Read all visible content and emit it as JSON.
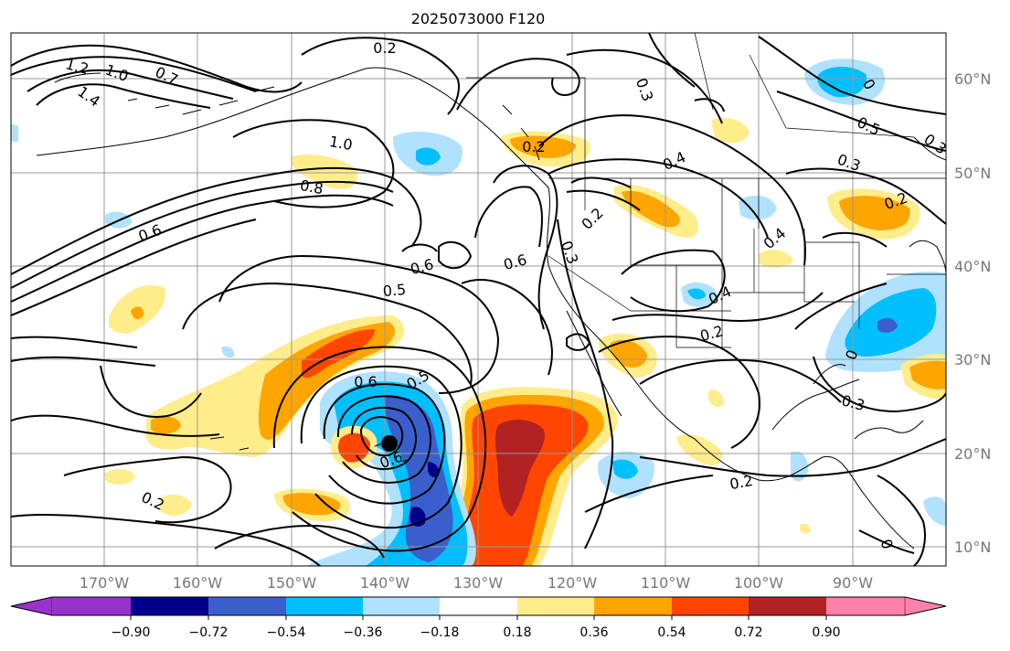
{
  "title": "2025073000 F120",
  "map": {
    "projection": "PlateCarree",
    "lon_range": [
      -180,
      -80
    ],
    "lat_range": [
      8,
      66
    ],
    "gridlines": true,
    "lon_labels": [
      "170°W",
      "160°W",
      "150°W",
      "140°W",
      "130°W",
      "120°W",
      "110°W",
      "100°W",
      "90°W"
    ],
    "lat_labels": [
      "60°N",
      "50°N",
      "40°N",
      "30°N",
      "20°N",
      "10°N"
    ],
    "contour_labels": [
      {
        "text": "0.2",
        "id": "c02a"
      },
      {
        "text": "1.2",
        "id": "c12"
      },
      {
        "text": "1.0",
        "id": "c10a"
      },
      {
        "text": "1.4",
        "id": "c14"
      },
      {
        "text": "0.7",
        "id": "c07"
      },
      {
        "text": "1.0",
        "id": "c10b"
      },
      {
        "text": "0.8",
        "id": "c08"
      },
      {
        "text": "0.6",
        "id": "c06a"
      },
      {
        "text": "0.6",
        "id": "c06b"
      },
      {
        "text": "0.5",
        "id": "c05a"
      },
      {
        "text": "0.6",
        "id": "c06c"
      },
      {
        "text": "0.6",
        "id": "c06d"
      },
      {
        "text": "0.5",
        "id": "c05b"
      },
      {
        "text": "0.6",
        "id": "c06e"
      },
      {
        "text": "0.2",
        "id": "c02b"
      },
      {
        "text": "0.2",
        "id": "c02c"
      },
      {
        "text": "0.3",
        "id": "c03a"
      },
      {
        "text": "0.4",
        "id": "c04a"
      },
      {
        "text": "0.2",
        "id": "c02d"
      },
      {
        "text": "0.3",
        "id": "c03b"
      },
      {
        "text": "0.4",
        "id": "c04b"
      },
      {
        "text": "0.4",
        "id": "c04c"
      },
      {
        "text": "0.2",
        "id": "c02e"
      },
      {
        "text": "0.3",
        "id": "c03c"
      },
      {
        "text": "0.5",
        "id": "c05c"
      },
      {
        "text": "0.3",
        "id": "c03d"
      },
      {
        "text": "0.2",
        "id": "c02f"
      },
      {
        "text": "0.3",
        "id": "c03e"
      },
      {
        "text": "0.2",
        "id": "c02g"
      },
      {
        "text": "0",
        "id": "c0a"
      },
      {
        "text": "0",
        "id": "c0b"
      },
      {
        "text": "0",
        "id": "c0c"
      }
    ]
  },
  "colorbar": {
    "tick_labels": [
      "−0.90",
      "−0.72",
      "−0.54",
      "−0.36",
      "−0.18",
      "0.18",
      "0.36",
      "0.54",
      "0.72",
      "0.90"
    ],
    "colors": {
      "below": "#9932cc",
      "b1": "#00008b",
      "b2": "#3a5fcd",
      "b3": "#00bfff",
      "b4": "#b0e2ff",
      "b5": "#ffffff",
      "b6": "#ffec8b",
      "b7": "#ffa500",
      "b8": "#ff4500",
      "b9": "#b22222",
      "above": "#ff82ab"
    }
  },
  "storm_marker": "tropical-cyclone-center"
}
